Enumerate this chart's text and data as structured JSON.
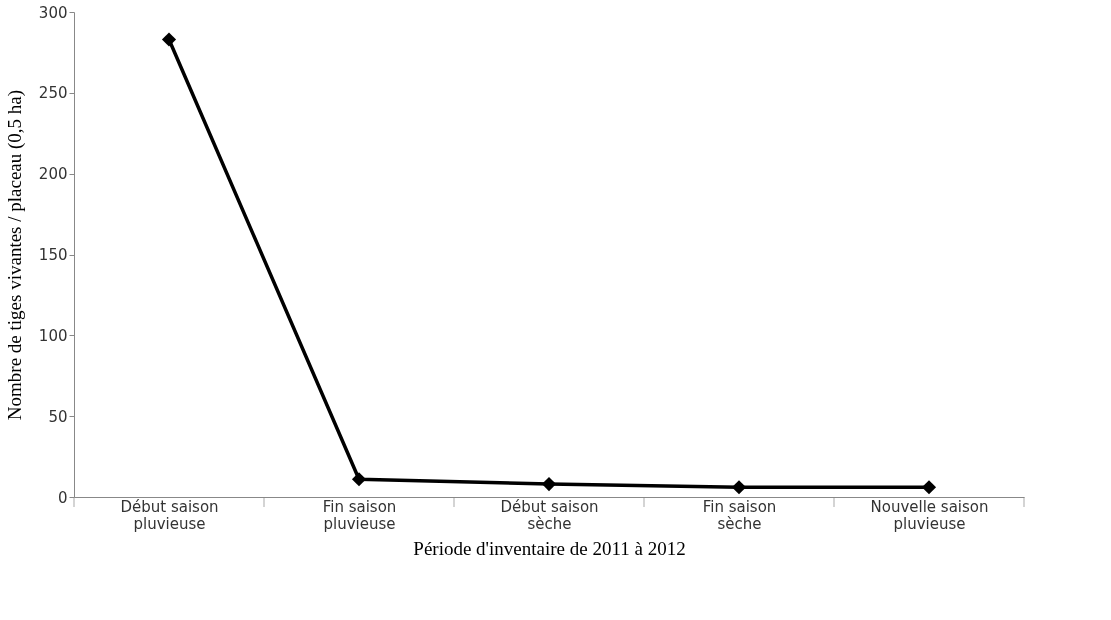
{
  "chart_data": {
    "type": "line",
    "xlabel": "Période d'inventaire de 2011 à 2012",
    "ylabel": "Nombre de tiges vivantes / placeau (0,5 ha)",
    "categories": [
      "Début saison pluvieuse",
      "Fin saison pluvieuse",
      "Début saison sèche",
      "Fin saison sèche",
      "Nouvelle saison pluvieuse"
    ],
    "series": [
      {
        "color": "#000000",
        "values": [
          283,
          11,
          8,
          6,
          6
        ]
      }
    ],
    "ylim": [
      0,
      300
    ],
    "yticks": [
      0,
      50,
      100,
      150,
      200,
      250,
      300
    ],
    "marker": "diamond",
    "line_style": "solid",
    "grid": false,
    "legend": false
  }
}
